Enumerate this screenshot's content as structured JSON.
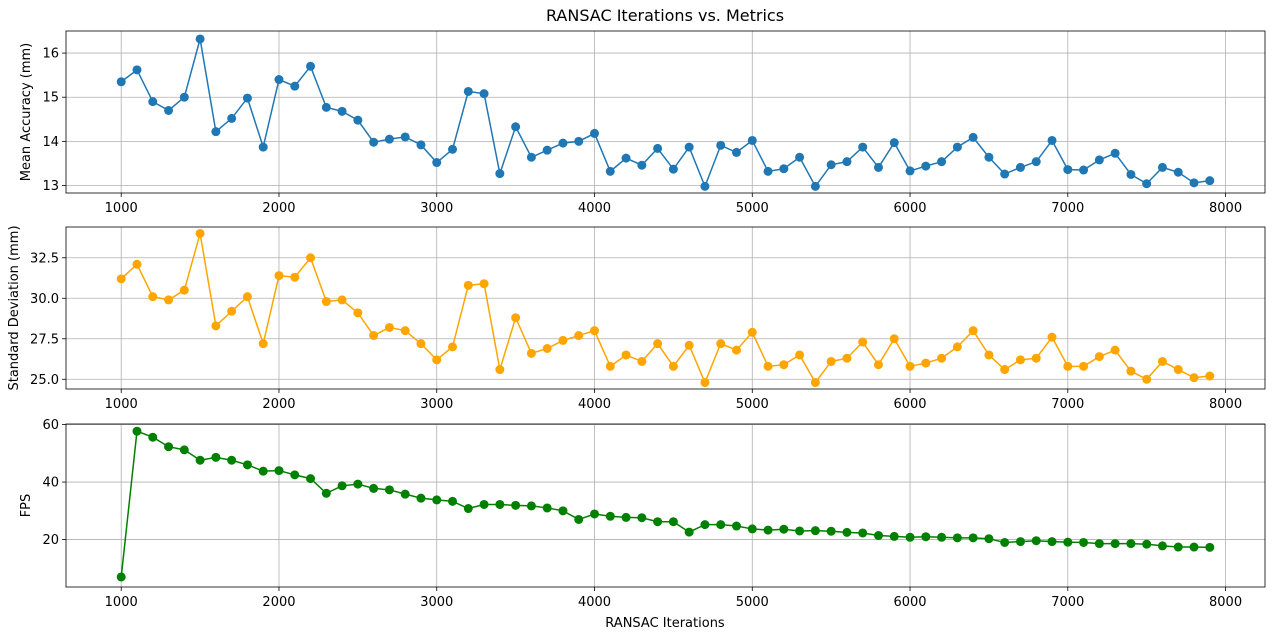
{
  "chart_data": {
    "title": "RANSAC Iterations vs. Metrics",
    "xlabel": "RANSAC Iterations",
    "x": [
      1000,
      1100,
      1200,
      1300,
      1400,
      1500,
      1600,
      1700,
      1800,
      1900,
      2000,
      2100,
      2200,
      2300,
      2400,
      2500,
      2600,
      2700,
      2800,
      2900,
      3000,
      3100,
      3200,
      3300,
      3400,
      3500,
      3600,
      3700,
      3800,
      3900,
      4000,
      4100,
      4200,
      4300,
      4400,
      4500,
      4600,
      4700,
      4800,
      4900,
      5000,
      5100,
      5200,
      5300,
      5400,
      5500,
      5600,
      5700,
      5800,
      5900,
      6000,
      6100,
      6200,
      6300,
      6400,
      6500,
      6600,
      6700,
      6800,
      6900,
      7000,
      7100,
      7200,
      7300,
      7400,
      7500,
      7600,
      7700,
      7800,
      7900
    ],
    "x_ticks": [
      1000,
      2000,
      3000,
      4000,
      5000,
      6000,
      7000,
      8000
    ],
    "xlim": [
      650,
      8250
    ],
    "grid": true,
    "subplots": [
      {
        "type": "line",
        "ylabel": "Mean Accuracy (mm)",
        "color": "#1f77b4",
        "ylim": [
          12.83,
          16.5
        ],
        "y_ticks": [
          13,
          14,
          15,
          16
        ],
        "y_tick_labels": [
          "13",
          "14",
          "15",
          "16"
        ],
        "values": [
          15.35,
          15.62,
          14.9,
          14.7,
          15.0,
          16.32,
          14.22,
          14.52,
          14.98,
          13.87,
          15.4,
          15.25,
          15.7,
          14.77,
          14.68,
          14.48,
          13.98,
          14.05,
          14.1,
          13.92,
          13.52,
          13.82,
          15.13,
          15.08,
          13.27,
          14.33,
          13.64,
          13.8,
          13.96,
          14.0,
          14.18,
          13.32,
          13.62,
          13.46,
          13.84,
          13.37,
          13.87,
          12.98,
          13.91,
          13.75,
          14.02,
          13.32,
          13.38,
          13.64,
          12.98,
          13.47,
          13.54,
          13.87,
          13.41,
          13.97,
          13.33,
          13.44,
          13.54,
          13.87,
          14.09,
          13.64,
          13.26,
          13.41,
          13.54,
          14.02,
          13.36,
          13.35,
          13.58,
          13.73,
          13.25,
          13.04,
          13.41,
          13.3,
          13.06,
          13.11
        ]
      },
      {
        "type": "line",
        "ylabel": "Standard Deviation (mm)",
        "color": "#ffa500",
        "ylim": [
          24.4,
          34.4
        ],
        "y_ticks": [
          25,
          27.5,
          30,
          32.5
        ],
        "y_tick_labels": [
          "25.0",
          "27.5",
          "30.0",
          "32.5"
        ],
        "values": [
          31.2,
          32.1,
          30.1,
          29.9,
          30.5,
          34.0,
          28.3,
          29.2,
          30.1,
          27.2,
          31.4,
          31.3,
          32.5,
          29.8,
          29.9,
          29.1,
          27.7,
          28.2,
          28.0,
          27.2,
          26.2,
          27.0,
          30.8,
          30.9,
          25.6,
          28.8,
          26.6,
          26.9,
          27.4,
          27.7,
          28.0,
          25.8,
          26.5,
          26.1,
          27.2,
          25.8,
          27.1,
          24.8,
          27.2,
          26.8,
          27.9,
          25.8,
          25.9,
          26.5,
          24.8,
          26.1,
          26.3,
          27.3,
          25.9,
          27.5,
          25.8,
          26.0,
          26.3,
          27.0,
          28.0,
          26.5,
          25.6,
          26.2,
          26.3,
          27.6,
          25.8,
          25.8,
          26.4,
          26.8,
          25.5,
          25.0,
          26.1,
          25.6,
          25.1,
          25.2
        ]
      },
      {
        "type": "line",
        "ylabel": "FPS",
        "color": "#008000",
        "ylim": [
          3.5,
          60.2
        ],
        "y_ticks": [
          20,
          40,
          60
        ],
        "y_tick_labels": [
          "20",
          "40",
          "60"
        ],
        "values": [
          7.0,
          57.7,
          55.6,
          52.3,
          51.2,
          47.6,
          48.6,
          47.6,
          46.0,
          43.8,
          44.0,
          42.5,
          41.2,
          36.1,
          38.7,
          39.3,
          37.8,
          37.3,
          35.8,
          34.4,
          33.8,
          33.3,
          30.8,
          32.2,
          32.2,
          31.9,
          31.7,
          31.0,
          30.0,
          27.0,
          28.9,
          28.1,
          27.7,
          27.6,
          26.2,
          26.2,
          22.6,
          25.2,
          25.2,
          24.7,
          23.7,
          23.3,
          23.6,
          23.0,
          23.1,
          22.9,
          22.5,
          22.3,
          21.4,
          21.1,
          20.8,
          21.0,
          20.8,
          20.6,
          20.6,
          20.3,
          19.0,
          19.3,
          19.6,
          19.3,
          19.1,
          19.0,
          18.6,
          18.6,
          18.6,
          18.4,
          17.8,
          17.4,
          17.4,
          17.3
        ]
      }
    ]
  }
}
